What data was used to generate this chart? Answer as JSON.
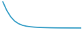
{
  "x": [
    0,
    1,
    2,
    3,
    4,
    5,
    6,
    7,
    8,
    9,
    10,
    11,
    12,
    13,
    14,
    15,
    16,
    17,
    18,
    19,
    20
  ],
  "y": [
    2350,
    1600,
    1050,
    680,
    450,
    310,
    230,
    180,
    150,
    130,
    115,
    105,
    95,
    88,
    83,
    80,
    78,
    76,
    75,
    74,
    73
  ],
  "line_color": "#3aa0c8",
  "line_width": 1.3,
  "background_color": "#ffffff",
  "ylim": [
    -50,
    2450
  ],
  "xlim": [
    -0.3,
    20
  ]
}
